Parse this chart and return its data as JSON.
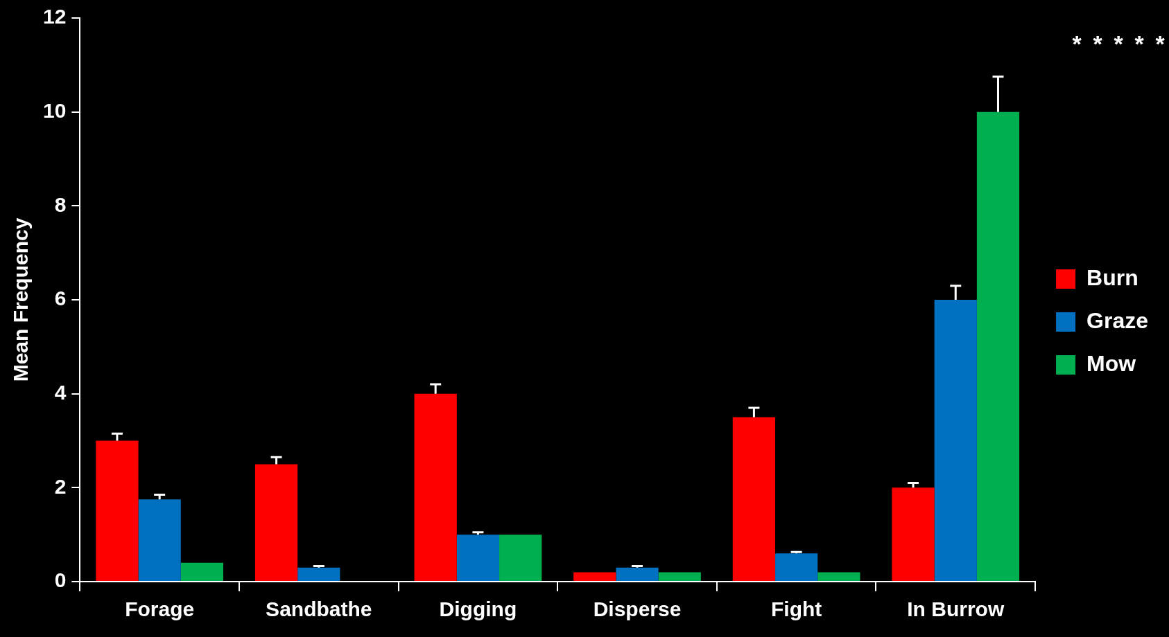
{
  "chart_data": {
    "type": "bar",
    "ylabel": "Mean Frequency",
    "categories": [
      "Forage",
      "Sandbathe",
      "Digging",
      "Disperse",
      "Fight",
      "In Burrow"
    ],
    "series": [
      {
        "name": "Burn",
        "color": "#ff0000",
        "values": [
          3.0,
          2.5,
          4.0,
          0.2,
          3.5,
          2.0
        ],
        "errors": [
          [
            3.0,
            3.15
          ],
          [
            2.5,
            2.65
          ],
          [
            4.0,
            4.2
          ],
          null,
          [
            3.5,
            3.7
          ],
          [
            2.0,
            2.1
          ]
        ]
      },
      {
        "name": "Graze",
        "color": "#0070c0",
        "values": [
          1.75,
          0.3,
          1.0,
          0.3,
          0.6,
          6.0
        ],
        "errors": [
          [
            1.75,
            1.85
          ],
          [
            0.3,
            0.33
          ],
          [
            1.0,
            1.05
          ],
          [
            0.3,
            0.33
          ],
          [
            0.6,
            0.63
          ],
          [
            6.0,
            6.3
          ]
        ]
      },
      {
        "name": "Mow",
        "color": "#00b050",
        "values": [
          0.4,
          0,
          1.0,
          0.2,
          0.2,
          10.0
        ],
        "errors": [
          null,
          null,
          null,
          null,
          null,
          [
            10.0,
            10.75
          ]
        ]
      }
    ],
    "ylim": [
      0,
      12
    ],
    "yticks": [
      0,
      2,
      4,
      6,
      8,
      10,
      12
    ],
    "grid": false,
    "legend": "right",
    "annotations": [
      "*",
      "*",
      "*",
      "*",
      "*"
    ]
  }
}
